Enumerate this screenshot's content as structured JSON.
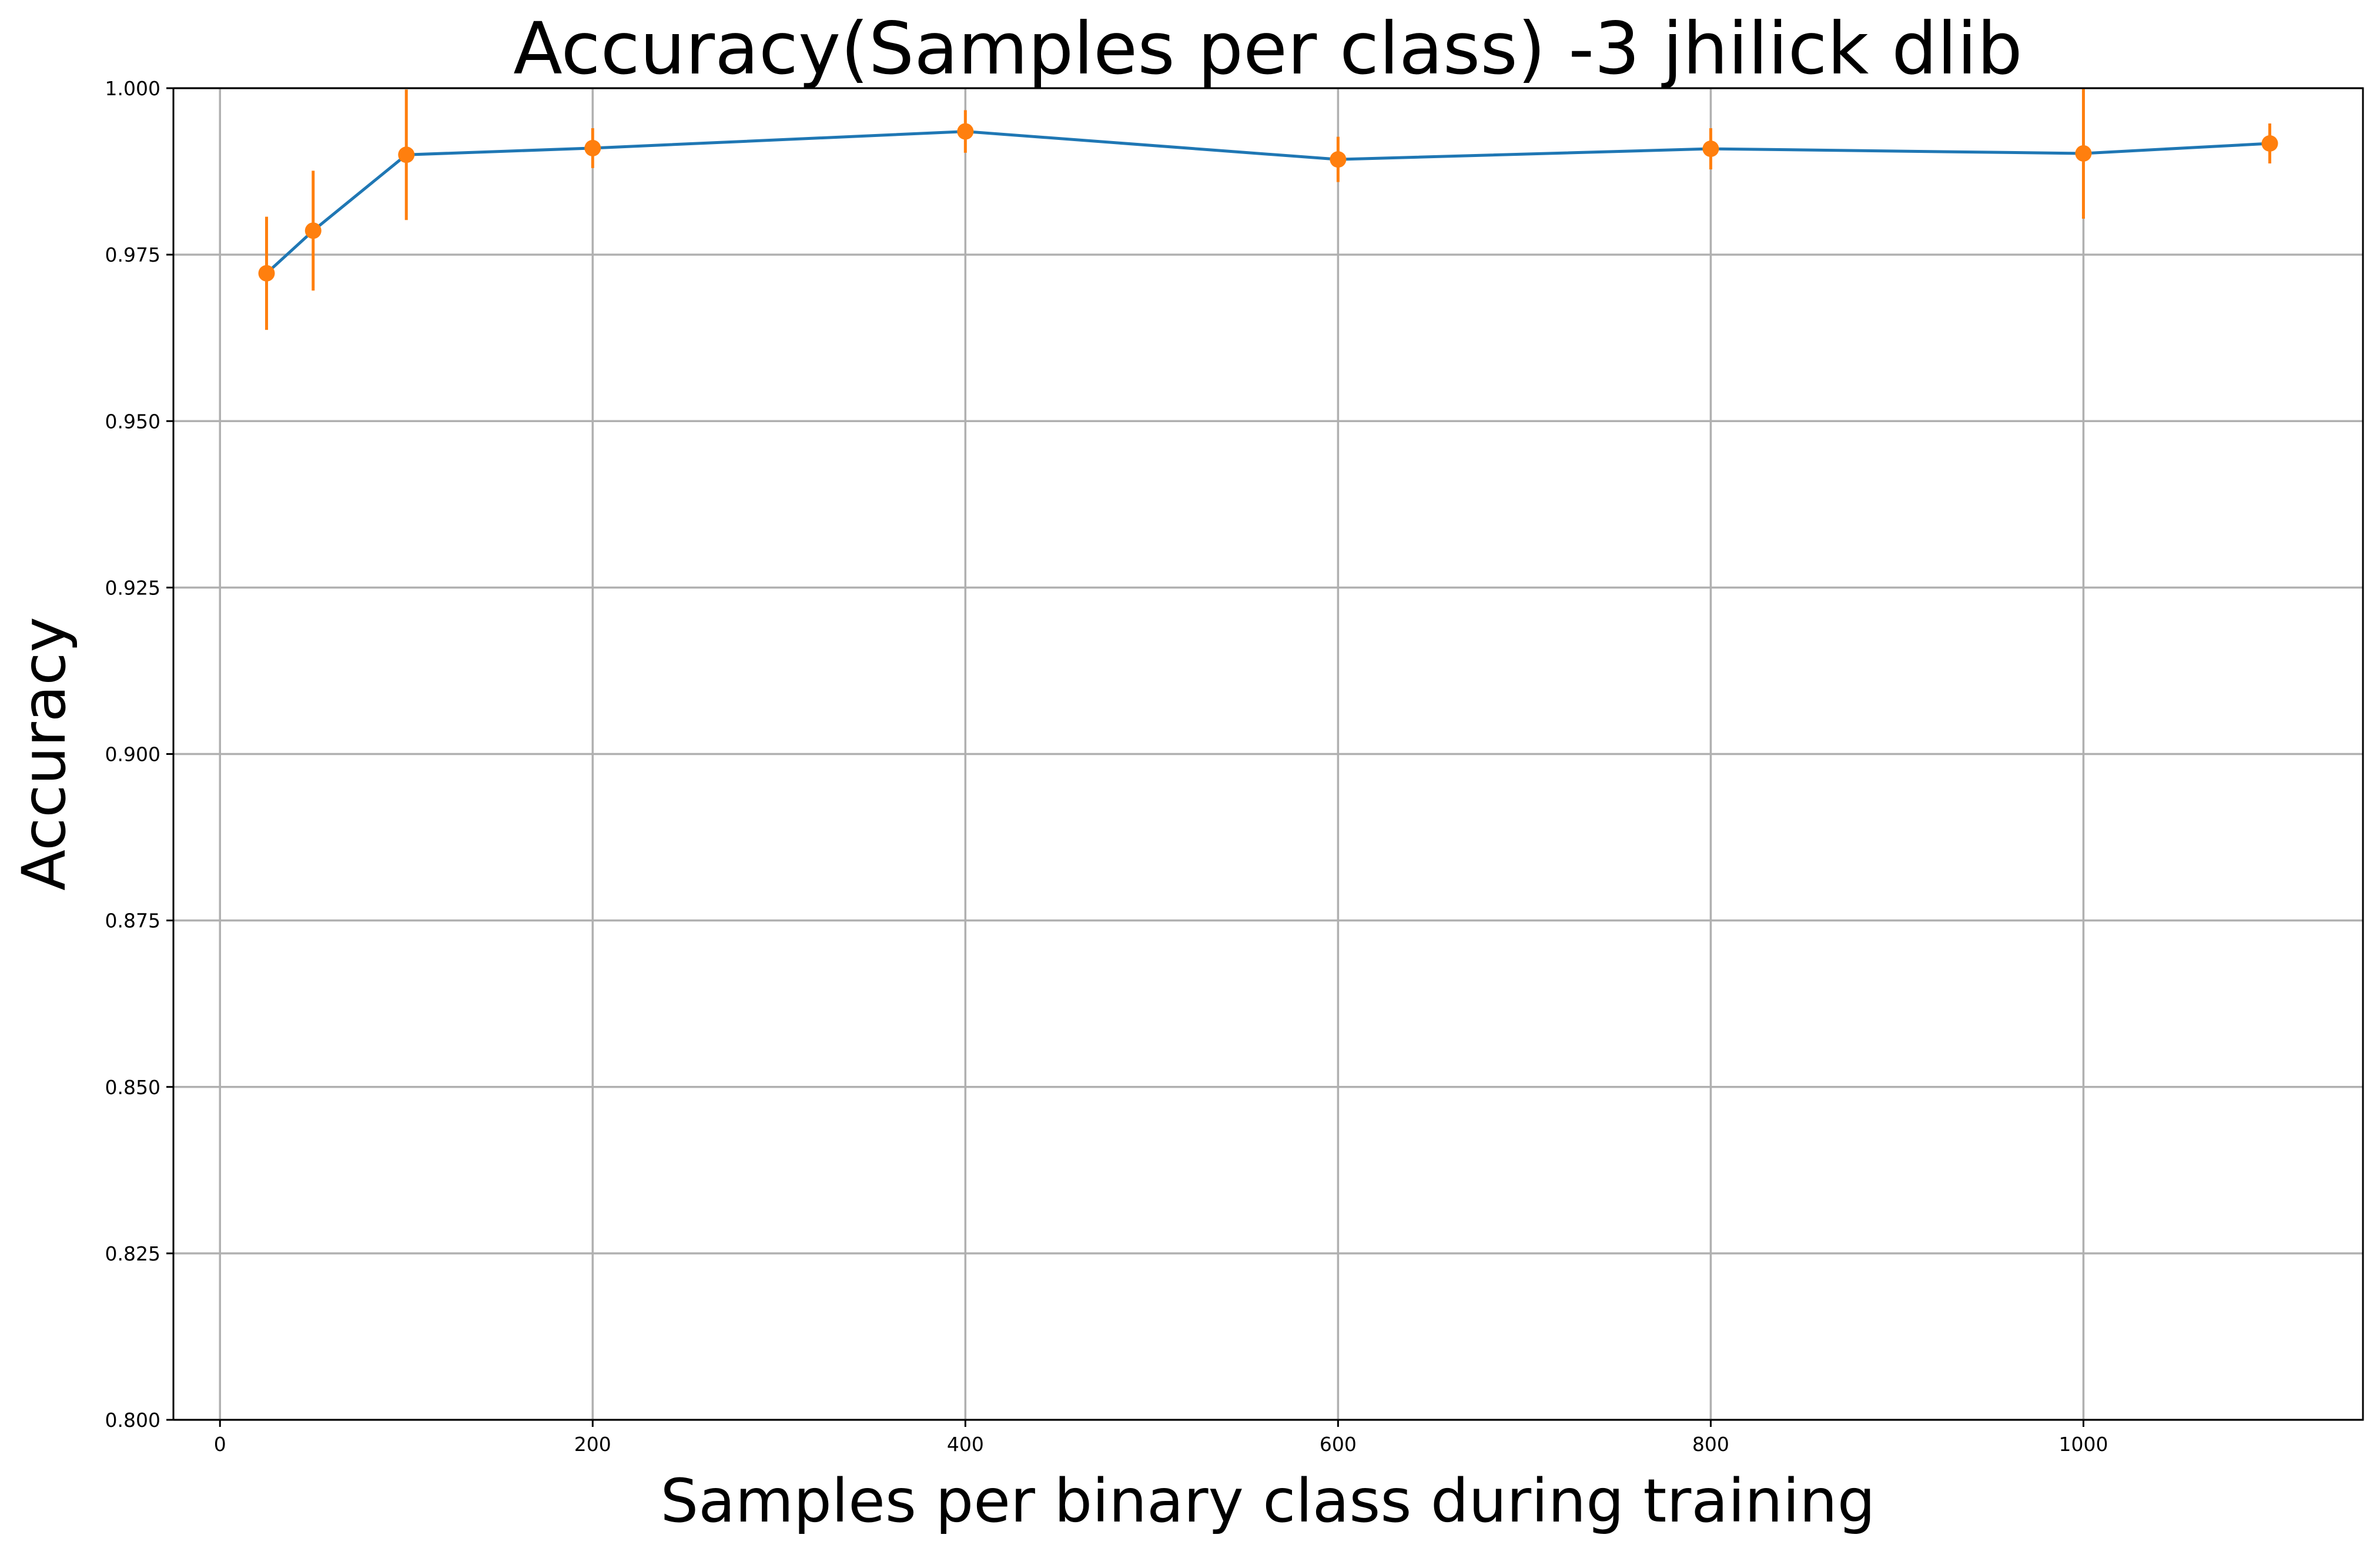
{
  "chart_data": {
    "type": "line",
    "title": "Accuracy(Samples per class) -3 jhilick dlib",
    "xlabel": "Samples per binary class during training",
    "ylabel": "Accuracy",
    "xlim": [
      -25,
      1150
    ],
    "ylim": [
      0.8,
      1.0
    ],
    "xticks": [
      0,
      200,
      400,
      600,
      800,
      1000
    ],
    "xtick_labels": [
      "0",
      "200",
      "400",
      "600",
      "800",
      "1000"
    ],
    "yticks": [
      0.8,
      0.825,
      0.85,
      0.875,
      0.9,
      0.925,
      0.95,
      0.975,
      1.0
    ],
    "ytick_labels": [
      "0.800",
      "0.825",
      "0.850",
      "0.875",
      "0.900",
      "0.925",
      "0.950",
      "0.975",
      "1.000"
    ],
    "grid": true,
    "series": [
      {
        "x": [
          25,
          50,
          100,
          200,
          400,
          600,
          800,
          1000,
          1100
        ],
        "y": [
          0.9722,
          0.9786,
          0.99,
          0.991,
          0.9935,
          0.9893,
          0.9909,
          0.9902,
          0.9917
        ],
        "yerr": [
          0.0085,
          0.009,
          0.0098,
          0.003,
          0.0032,
          0.0034,
          0.0031,
          0.0098,
          0.003
        ],
        "line_color": "#1f77b4",
        "marker_color": "#ff7f0e"
      }
    ]
  }
}
